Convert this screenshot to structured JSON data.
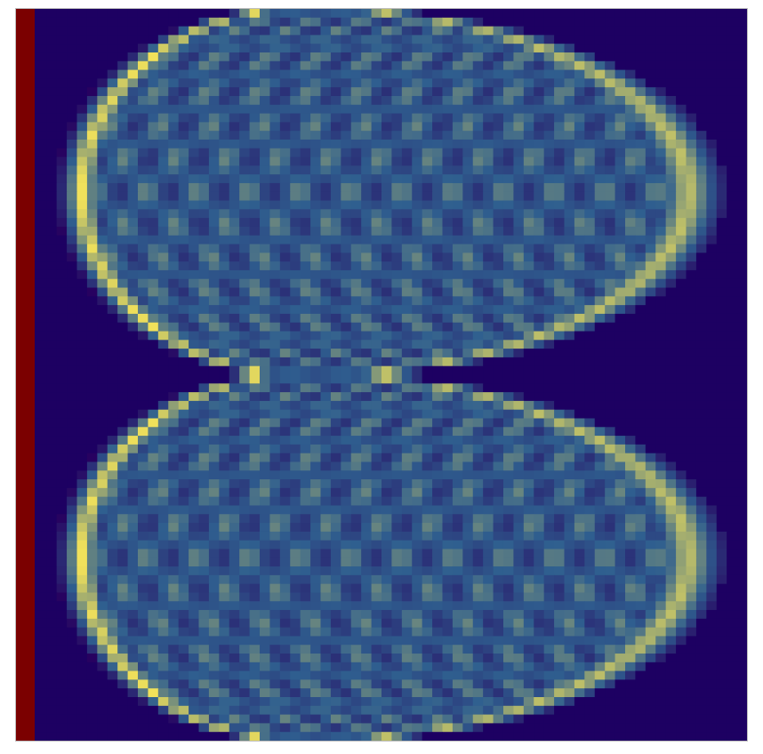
{
  "chart_data": {
    "type": "heatmap",
    "title": "",
    "xlabel": "",
    "ylabel": "",
    "grid": false,
    "legend": "none",
    "colormap": "viridis-like",
    "colors": {
      "background": "#1d0062",
      "low": "#27005f",
      "mid": "#2f5f8f",
      "high": "#f2e25a",
      "left_band": "#7b0000"
    },
    "structure": {
      "left_band_column": 0,
      "lobes": [
        {
          "name": "upper-lobe",
          "center_y": 0.25,
          "intensity": 1.0
        },
        {
          "name": "lower-lobe",
          "center_y": 0.75,
          "intensity": 1.0
        }
      ],
      "central_crossing_x": 0.39,
      "edge_peak": 1.0,
      "interior_peak": 0.62
    }
  }
}
